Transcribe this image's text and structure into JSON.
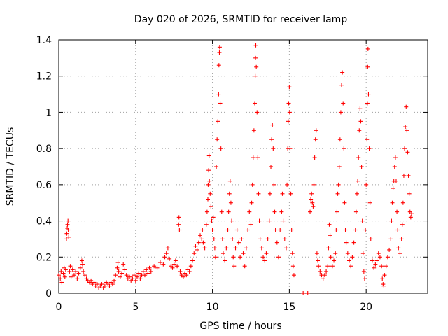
{
  "chart_data": {
    "type": "scatter",
    "title": "Day 020 of 2026, SRMTID for receiver lamp",
    "xlabel": "GPS time / hours",
    "ylabel": "SRMTID / TECUs",
    "xlim": [
      0,
      24
    ],
    "ylim": [
      0,
      1.4
    ],
    "xticks": [
      0,
      5,
      10,
      15,
      20
    ],
    "xtick_labels": [
      "0",
      "5",
      "10",
      "15",
      "20"
    ],
    "yticks": [
      0,
      0.2,
      0.4,
      0.6,
      0.8,
      1,
      1.2,
      1.4
    ],
    "ytick_labels": [
      "0",
      "0.2",
      "0.4",
      "0.6",
      "0.8",
      "1",
      "1.2",
      "1.4"
    ],
    "grid": true,
    "marker": "+",
    "series": [
      {
        "name": "SRMTID",
        "color": "#ff0000",
        "points": [
          [
            0.0,
            0.1
          ],
          [
            0.1,
            0.08
          ],
          [
            0.15,
            0.12
          ],
          [
            0.2,
            0.06
          ],
          [
            0.3,
            0.11
          ],
          [
            0.35,
            0.14
          ],
          [
            0.4,
            0.09
          ],
          [
            0.45,
            0.13
          ],
          [
            0.5,
            0.3
          ],
          [
            0.52,
            0.33
          ],
          [
            0.55,
            0.36
          ],
          [
            0.57,
            0.38
          ],
          [
            0.6,
            0.4
          ],
          [
            0.62,
            0.35
          ],
          [
            0.65,
            0.31
          ],
          [
            0.7,
            0.12
          ],
          [
            0.75,
            0.15
          ],
          [
            0.8,
            0.09
          ],
          [
            0.9,
            0.13
          ],
          [
            1.0,
            0.1
          ],
          [
            1.1,
            0.12
          ],
          [
            1.2,
            0.08
          ],
          [
            1.3,
            0.11
          ],
          [
            1.4,
            0.14
          ],
          [
            1.5,
            0.18
          ],
          [
            1.55,
            0.16
          ],
          [
            1.6,
            0.12
          ],
          [
            1.7,
            0.1
          ],
          [
            1.8,
            0.08
          ],
          [
            1.9,
            0.07
          ],
          [
            2.0,
            0.06
          ],
          [
            2.1,
            0.07
          ],
          [
            2.2,
            0.05
          ],
          [
            2.3,
            0.06
          ],
          [
            2.4,
            0.04
          ],
          [
            2.5,
            0.05
          ],
          [
            2.6,
            0.03
          ],
          [
            2.7,
            0.04
          ],
          [
            2.8,
            0.05
          ],
          [
            2.9,
            0.03
          ],
          [
            3.0,
            0.04
          ],
          [
            3.1,
            0.06
          ],
          [
            3.2,
            0.05
          ],
          [
            3.3,
            0.04
          ],
          [
            3.4,
            0.06
          ],
          [
            3.5,
            0.05
          ],
          [
            3.6,
            0.07
          ],
          [
            3.7,
            0.1
          ],
          [
            3.8,
            0.14
          ],
          [
            3.85,
            0.17
          ],
          [
            3.9,
            0.12
          ],
          [
            4.0,
            0.09
          ],
          [
            4.1,
            0.11
          ],
          [
            4.2,
            0.16
          ],
          [
            4.3,
            0.13
          ],
          [
            4.4,
            0.1
          ],
          [
            4.5,
            0.08
          ],
          [
            4.6,
            0.09
          ],
          [
            4.7,
            0.07
          ],
          [
            4.8,
            0.08
          ],
          [
            4.9,
            0.1
          ],
          [
            5.0,
            0.07
          ],
          [
            5.1,
            0.09
          ],
          [
            5.2,
            0.11
          ],
          [
            5.3,
            0.08
          ],
          [
            5.4,
            0.1
          ],
          [
            5.5,
            0.12
          ],
          [
            5.6,
            0.1
          ],
          [
            5.7,
            0.13
          ],
          [
            5.8,
            0.11
          ],
          [
            5.9,
            0.14
          ],
          [
            6.0,
            0.12
          ],
          [
            6.2,
            0.15
          ],
          [
            6.4,
            0.14
          ],
          [
            6.6,
            0.17
          ],
          [
            6.8,
            0.16
          ],
          [
            6.9,
            0.2
          ],
          [
            7.0,
            0.22
          ],
          [
            7.1,
            0.25
          ],
          [
            7.2,
            0.19
          ],
          [
            7.3,
            0.15
          ],
          [
            7.4,
            0.14
          ],
          [
            7.5,
            0.16
          ],
          [
            7.6,
            0.18
          ],
          [
            7.7,
            0.15
          ],
          [
            7.8,
            0.38
          ],
          [
            7.82,
            0.42
          ],
          [
            7.85,
            0.35
          ],
          [
            7.9,
            0.12
          ],
          [
            8.0,
            0.1
          ],
          [
            8.1,
            0.09
          ],
          [
            8.2,
            0.11
          ],
          [
            8.3,
            0.1
          ],
          [
            8.4,
            0.13
          ],
          [
            8.5,
            0.12
          ],
          [
            8.6,
            0.15
          ],
          [
            8.7,
            0.18
          ],
          [
            8.8,
            0.22
          ],
          [
            8.9,
            0.26
          ],
          [
            9.0,
            0.24
          ],
          [
            9.1,
            0.28
          ],
          [
            9.2,
            0.32
          ],
          [
            9.3,
            0.3
          ],
          [
            9.35,
            0.35
          ],
          [
            9.4,
            0.28
          ],
          [
            9.5,
            0.25
          ],
          [
            9.6,
            0.38
          ],
          [
            9.65,
            0.45
          ],
          [
            9.7,
            0.52
          ],
          [
            9.72,
            0.6
          ],
          [
            9.75,
            0.68
          ],
          [
            9.78,
            0.76
          ],
          [
            9.8,
            0.62
          ],
          [
            9.85,
            0.55
          ],
          [
            9.9,
            0.48
          ],
          [
            9.95,
            0.4
          ],
          [
            10.0,
            0.35
          ],
          [
            10.05,
            0.42
          ],
          [
            10.1,
            0.3
          ],
          [
            10.15,
            0.25
          ],
          [
            10.2,
            0.2
          ],
          [
            10.25,
            0.7
          ],
          [
            10.3,
            0.85
          ],
          [
            10.35,
            0.95
          ],
          [
            10.4,
            1.1
          ],
          [
            10.42,
            1.26
          ],
          [
            10.45,
            1.33
          ],
          [
            10.47,
            1.36
          ],
          [
            10.5,
            1.05
          ],
          [
            10.55,
            0.8
          ],
          [
            10.6,
            0.45
          ],
          [
            10.65,
            0.3
          ],
          [
            10.7,
            0.22
          ],
          [
            10.8,
            0.18
          ],
          [
            10.9,
            0.25
          ],
          [
            11.0,
            0.35
          ],
          [
            11.05,
            0.45
          ],
          [
            11.1,
            0.55
          ],
          [
            11.15,
            0.62
          ],
          [
            11.2,
            0.5
          ],
          [
            11.25,
            0.4
          ],
          [
            11.3,
            0.3
          ],
          [
            11.35,
            0.2
          ],
          [
            11.4,
            0.15
          ],
          [
            11.5,
            0.25
          ],
          [
            11.6,
            0.35
          ],
          [
            11.7,
            0.28
          ],
          [
            11.8,
            0.2
          ],
          [
            11.9,
            0.3
          ],
          [
            12.0,
            0.22
          ],
          [
            12.1,
            0.15
          ],
          [
            12.2,
            0.25
          ],
          [
            12.3,
            0.35
          ],
          [
            12.4,
            0.45
          ],
          [
            12.5,
            0.38
          ],
          [
            12.55,
            0.5
          ],
          [
            12.6,
            0.6
          ],
          [
            12.65,
            0.75
          ],
          [
            12.7,
            0.9
          ],
          [
            12.75,
            1.05
          ],
          [
            12.78,
            1.2
          ],
          [
            12.8,
            1.3
          ],
          [
            12.82,
            1.37
          ],
          [
            12.85,
            1.25
          ],
          [
            12.9,
            1.0
          ],
          [
            12.95,
            0.75
          ],
          [
            13.0,
            0.55
          ],
          [
            13.05,
            0.4
          ],
          [
            13.1,
            0.3
          ],
          [
            13.2,
            0.25
          ],
          [
            13.3,
            0.2
          ],
          [
            13.4,
            0.18
          ],
          [
            13.5,
            0.22
          ],
          [
            13.6,
            0.3
          ],
          [
            13.7,
            0.4
          ],
          [
            13.75,
            0.55
          ],
          [
            13.8,
            0.7
          ],
          [
            13.85,
            0.85
          ],
          [
            13.9,
            0.93
          ],
          [
            13.95,
            0.8
          ],
          [
            14.0,
            0.6
          ],
          [
            14.05,
            0.45
          ],
          [
            14.1,
            0.35
          ],
          [
            14.2,
            0.28
          ],
          [
            14.3,
            0.2
          ],
          [
            14.4,
            0.35
          ],
          [
            14.5,
            0.45
          ],
          [
            14.55,
            0.55
          ],
          [
            14.6,
            0.4
          ],
          [
            14.7,
            0.3
          ],
          [
            14.8,
            0.25
          ],
          [
            14.85,
            0.6
          ],
          [
            14.9,
            0.8
          ],
          [
            14.93,
            0.95
          ],
          [
            14.96,
            1.05
          ],
          [
            15.0,
            1.14
          ],
          [
            15.02,
            1.0
          ],
          [
            15.05,
            0.8
          ],
          [
            15.1,
            0.55
          ],
          [
            15.15,
            0.35
          ],
          [
            15.2,
            0.22
          ],
          [
            15.25,
            0.15
          ],
          [
            15.3,
            0.1
          ],
          [
            15.9,
            0.0
          ],
          [
            16.2,
            0.0
          ],
          [
            16.35,
            0.45
          ],
          [
            16.4,
            0.52
          ],
          [
            16.45,
            0.55
          ],
          [
            16.5,
            0.5
          ],
          [
            16.55,
            0.48
          ],
          [
            16.6,
            0.6
          ],
          [
            16.65,
            0.75
          ],
          [
            16.7,
            0.85
          ],
          [
            16.75,
            0.9
          ],
          [
            16.8,
            0.22
          ],
          [
            16.85,
            0.18
          ],
          [
            16.9,
            0.15
          ],
          [
            17.0,
            0.12
          ],
          [
            17.1,
            0.1
          ],
          [
            17.2,
            0.08
          ],
          [
            17.3,
            0.1
          ],
          [
            17.4,
            0.12
          ],
          [
            17.5,
            0.15
          ],
          [
            17.55,
            0.25
          ],
          [
            17.6,
            0.38
          ],
          [
            17.65,
            0.32
          ],
          [
            17.7,
            0.2
          ],
          [
            17.8,
            0.15
          ],
          [
            17.9,
            0.18
          ],
          [
            18.0,
            0.22
          ],
          [
            18.05,
            0.35
          ],
          [
            18.1,
            0.45
          ],
          [
            18.15,
            0.55
          ],
          [
            18.2,
            0.6
          ],
          [
            18.25,
            0.7
          ],
          [
            18.3,
            0.85
          ],
          [
            18.35,
            1.0
          ],
          [
            18.4,
            1.15
          ],
          [
            18.45,
            1.22
          ],
          [
            18.5,
            1.05
          ],
          [
            18.55,
            0.8
          ],
          [
            18.6,
            0.5
          ],
          [
            18.65,
            0.35
          ],
          [
            18.7,
            0.28
          ],
          [
            18.8,
            0.22
          ],
          [
            18.9,
            0.18
          ],
          [
            19.0,
            0.15
          ],
          [
            19.1,
            0.2
          ],
          [
            19.2,
            0.28
          ],
          [
            19.3,
            0.35
          ],
          [
            19.35,
            0.45
          ],
          [
            19.4,
            0.55
          ],
          [
            19.45,
            0.62
          ],
          [
            19.5,
            0.75
          ],
          [
            19.55,
            0.9
          ],
          [
            19.6,
            1.02
          ],
          [
            19.65,
            0.95
          ],
          [
            19.7,
            0.7
          ],
          [
            19.75,
            0.4
          ],
          [
            19.8,
            0.22
          ],
          [
            19.85,
            0.12
          ],
          [
            19.9,
            0.08
          ],
          [
            19.95,
            0.35
          ],
          [
            20.0,
            0.6
          ],
          [
            20.05,
            0.85
          ],
          [
            20.08,
            1.05
          ],
          [
            20.1,
            1.25
          ],
          [
            20.12,
            1.35
          ],
          [
            20.15,
            1.1
          ],
          [
            20.2,
            0.8
          ],
          [
            20.25,
            0.5
          ],
          [
            20.3,
            0.3
          ],
          [
            20.4,
            0.18
          ],
          [
            20.5,
            0.14
          ],
          [
            20.6,
            0.16
          ],
          [
            20.7,
            0.18
          ],
          [
            20.8,
            0.22
          ],
          [
            20.9,
            0.2
          ],
          [
            21.0,
            0.15
          ],
          [
            21.05,
            0.08
          ],
          [
            21.1,
            0.05
          ],
          [
            21.15,
            0.04
          ],
          [
            21.2,
            0.1
          ],
          [
            21.3,
            0.15
          ],
          [
            21.4,
            0.2
          ],
          [
            21.5,
            0.24
          ],
          [
            21.6,
            0.3
          ],
          [
            21.65,
            0.4
          ],
          [
            21.7,
            0.5
          ],
          [
            21.75,
            0.58
          ],
          [
            21.8,
            0.62
          ],
          [
            21.85,
            0.7
          ],
          [
            21.9,
            0.75
          ],
          [
            21.95,
            0.62
          ],
          [
            22.0,
            0.45
          ],
          [
            22.05,
            0.35
          ],
          [
            22.1,
            0.25
          ],
          [
            22.2,
            0.22
          ],
          [
            22.3,
            0.3
          ],
          [
            22.35,
            0.38
          ],
          [
            22.4,
            0.5
          ],
          [
            22.45,
            0.65
          ],
          [
            22.5,
            0.8
          ],
          [
            22.55,
            0.92
          ],
          [
            22.6,
            1.03
          ],
          [
            22.65,
            0.9
          ],
          [
            22.7,
            0.78
          ],
          [
            22.75,
            0.65
          ],
          [
            22.8,
            0.55
          ],
          [
            22.85,
            0.45
          ],
          [
            22.9,
            0.42
          ],
          [
            22.95,
            0.44
          ]
        ]
      }
    ]
  }
}
